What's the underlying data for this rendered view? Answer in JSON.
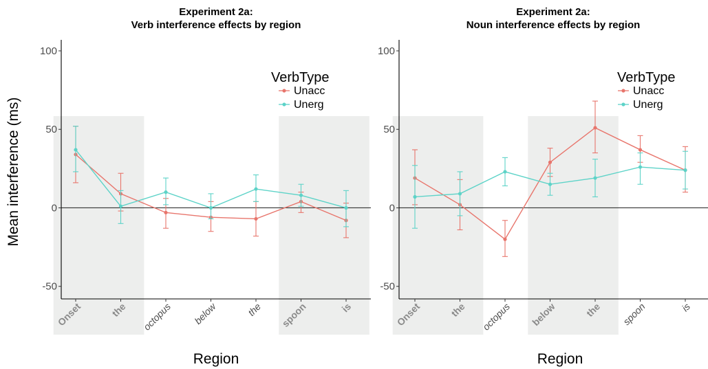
{
  "figure": {
    "ylabel": "Mean interference (ms)"
  },
  "chart_data": [
    {
      "type": "line",
      "title": "Experiment 2a:",
      "subtitle": "Verb interference effects by region",
      "xlabel": "Region",
      "ylabel": "Mean interference (ms)",
      "categories": [
        "Onset",
        "the",
        "octopus",
        "below",
        "the",
        "spoon",
        "is"
      ],
      "category_styles": [
        "bold",
        "bold",
        "italic",
        "italic",
        "italic",
        "bold",
        "bold"
      ],
      "shaded_categories": [
        0,
        1,
        5,
        6
      ],
      "ylim": [
        -58,
        107
      ],
      "yticks": [
        -50,
        0,
        50,
        100
      ],
      "reference_line": 0,
      "grid": false,
      "legend": {
        "title": "VerbType",
        "position": "top-right"
      },
      "series": [
        {
          "name": "Unacc",
          "color": "#e8756c",
          "values": [
            34,
            9,
            -3,
            -6,
            -7,
            4,
            -8
          ],
          "err_low": [
            16,
            -2,
            -13,
            -15,
            -18,
            -3,
            -19
          ],
          "err_high": [
            52,
            22,
            6,
            4,
            4,
            10,
            3
          ]
        },
        {
          "name": "Unerg",
          "color": "#5dd3c8",
          "values": [
            37,
            1,
            10,
            0,
            12,
            8,
            0
          ],
          "err_low": [
            23,
            -10,
            2,
            -7,
            4,
            1,
            -12
          ],
          "err_high": [
            52,
            11,
            19,
            9,
            21,
            15,
            11
          ]
        }
      ]
    },
    {
      "type": "line",
      "title": "Experiment  2a:",
      "subtitle": "Noun interference effects by region",
      "xlabel": "Region",
      "ylabel": "",
      "categories": [
        "Onset",
        "the",
        "octopus",
        "below",
        "the",
        "spoon",
        "is"
      ],
      "category_styles": [
        "bold",
        "bold",
        "italic",
        "bold",
        "bold",
        "italic",
        "italic"
      ],
      "shaded_categories": [
        0,
        1,
        3,
        4
      ],
      "ylim": [
        -58,
        107
      ],
      "yticks": [
        -50,
        0,
        50,
        100
      ],
      "reference_line": 0,
      "grid": false,
      "legend": {
        "title": "VerbType",
        "position": "top-right"
      },
      "series": [
        {
          "name": "Unacc",
          "color": "#e8756c",
          "values": [
            19,
            2,
            -20,
            29,
            51,
            37,
            24
          ],
          "err_low": [
            2,
            -14,
            -31,
            20,
            35,
            29,
            10
          ],
          "err_high": [
            37,
            18,
            -8,
            38,
            68,
            46,
            39
          ]
        },
        {
          "name": "Unerg",
          "color": "#5dd3c8",
          "values": [
            7,
            9,
            23,
            15,
            19,
            26,
            24
          ],
          "err_low": [
            -13,
            -5,
            14,
            8,
            7,
            15,
            12
          ],
          "err_high": [
            27,
            23,
            32,
            22,
            31,
            35,
            36
          ]
        }
      ]
    }
  ]
}
